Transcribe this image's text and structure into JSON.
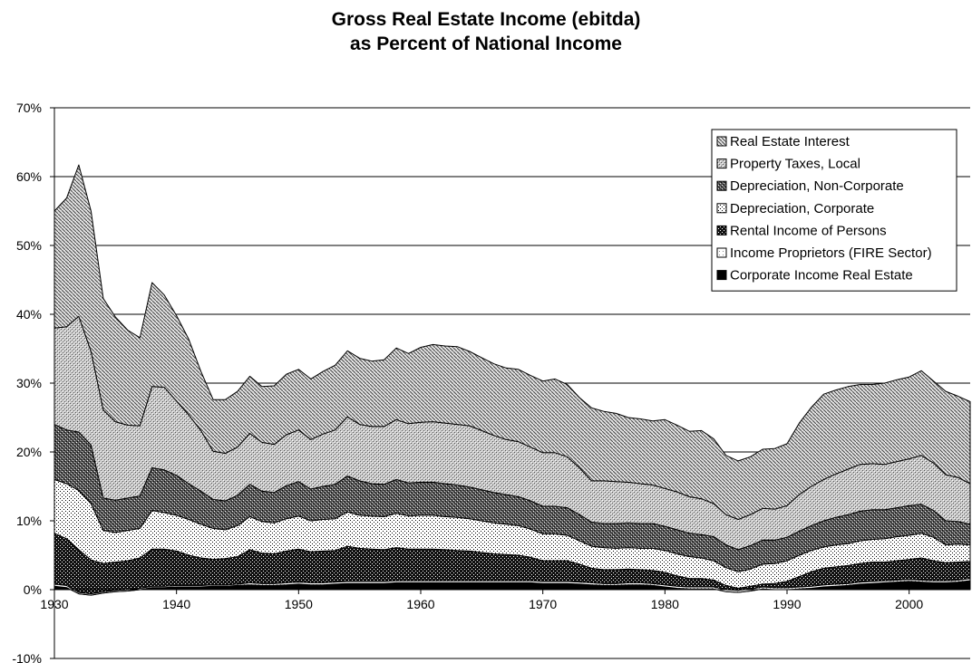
{
  "chart_data": {
    "type": "area",
    "stacked": true,
    "title": [
      "Gross Real Estate Income (ebitda)",
      "as Percent of National Income"
    ],
    "xlabel": "",
    "ylabel": "",
    "xlim": [
      1930,
      2005
    ],
    "ylim": [
      -10,
      70
    ],
    "y_ticks": [
      "-10%",
      "0%",
      "10%",
      "20%",
      "30%",
      "40%",
      "50%",
      "60%",
      "70%"
    ],
    "x_ticks": [
      "1930",
      "1940",
      "1950",
      "1960",
      "1970",
      "1980",
      "1990",
      "2000"
    ],
    "grid": "horizontal",
    "legend_position": "top-right",
    "x": [
      1930,
      1931,
      1932,
      1933,
      1934,
      1935,
      1936,
      1937,
      1938,
      1939,
      1940,
      1941,
      1942,
      1943,
      1944,
      1945,
      1946,
      1947,
      1948,
      1949,
      1950,
      1951,
      1952,
      1953,
      1954,
      1955,
      1956,
      1957,
      1958,
      1959,
      1960,
      1961,
      1962,
      1963,
      1964,
      1965,
      1966,
      1967,
      1968,
      1969,
      1970,
      1971,
      1972,
      1973,
      1974,
      1975,
      1976,
      1977,
      1978,
      1979,
      1980,
      1981,
      1982,
      1983,
      1984,
      1985,
      1986,
      1987,
      1988,
      1989,
      1990,
      1991,
      1992,
      1993,
      1994,
      1995,
      1996,
      1997,
      1998,
      1999,
      2000,
      2001,
      2002,
      2003,
      2004,
      2005
    ],
    "series": [
      {
        "name": "Corporate Income Real Estate",
        "pattern": "black",
        "values": [
          0.5,
          0.3,
          -0.6,
          -0.8,
          -0.5,
          -0.3,
          -0.2,
          0.0,
          0.3,
          0.3,
          0.4,
          0.4,
          0.4,
          0.5,
          0.5,
          0.6,
          0.7,
          0.6,
          0.6,
          0.7,
          0.8,
          0.7,
          0.7,
          0.8,
          0.9,
          0.9,
          0.9,
          0.9,
          1.0,
          1.0,
          1.0,
          1.0,
          1.0,
          1.0,
          1.0,
          1.0,
          1.0,
          1.0,
          1.0,
          1.0,
          0.9,
          0.9,
          0.9,
          0.8,
          0.7,
          0.6,
          0.6,
          0.7,
          0.7,
          0.6,
          0.4,
          0.2,
          0.1,
          0.1,
          0.1,
          -0.3,
          -0.4,
          -0.2,
          0.1,
          0.0,
          0.0,
          0.1,
          0.2,
          0.4,
          0.5,
          0.6,
          0.8,
          0.9,
          1.0,
          1.1,
          1.2,
          1.1,
          1.0,
          1.0,
          1.1,
          1.3
        ]
      },
      {
        "name": "Income Proprietors (FIRE Sector)",
        "pattern": "white",
        "values": [
          0.3,
          0.3,
          0.2,
          0.2,
          0.2,
          0.2,
          0.2,
          0.2,
          0.2,
          0.2,
          0.2,
          0.2,
          0.2,
          0.2,
          0.2,
          0.2,
          0.3,
          0.3,
          0.3,
          0.3,
          0.3,
          0.3,
          0.3,
          0.3,
          0.3,
          0.3,
          0.3,
          0.3,
          0.3,
          0.3,
          0.3,
          0.3,
          0.3,
          0.3,
          0.3,
          0.3,
          0.3,
          0.3,
          0.3,
          0.3,
          0.3,
          0.3,
          0.3,
          0.3,
          0.3,
          0.3,
          0.3,
          0.3,
          0.3,
          0.3,
          0.3,
          0.3,
          0.3,
          0.3,
          0.3,
          0.3,
          0.3,
          0.3,
          0.3,
          0.3,
          0.3,
          0.3,
          0.3,
          0.3,
          0.3,
          0.3,
          0.3,
          0.3,
          0.3,
          0.3,
          0.3,
          0.3,
          0.3,
          0.3,
          0.3,
          0.3
        ]
      },
      {
        "name": "Rental Income of Persons",
        "pattern": "dense-dark",
        "values": [
          7.4,
          6.8,
          6.2,
          4.9,
          4.1,
          4.1,
          4.2,
          4.4,
          5.4,
          5.4,
          5.0,
          4.4,
          4.0,
          3.7,
          3.8,
          4.0,
          4.8,
          4.4,
          4.3,
          4.6,
          4.8,
          4.5,
          4.6,
          4.6,
          5.1,
          4.8,
          4.7,
          4.6,
          4.8,
          4.6,
          4.6,
          4.6,
          4.5,
          4.4,
          4.3,
          4.1,
          3.9,
          3.8,
          3.7,
          3.4,
          3.0,
          3.0,
          3.0,
          2.6,
          2.1,
          2.0,
          2.0,
          2.0,
          1.9,
          1.9,
          1.8,
          1.5,
          1.2,
          1.2,
          1.0,
          0.6,
          0.3,
          0.4,
          0.4,
          0.6,
          0.9,
          1.5,
          2.1,
          2.4,
          2.5,
          2.6,
          2.7,
          2.8,
          2.7,
          2.8,
          2.9,
          3.2,
          2.9,
          2.6,
          2.6,
          2.5
        ]
      },
      {
        "name": "Depreciation, Corporate",
        "pattern": "dots",
        "values": [
          7.8,
          8.0,
          8.6,
          8.2,
          4.8,
          4.3,
          4.4,
          4.3,
          5.6,
          5.3,
          5.2,
          5.2,
          4.9,
          4.5,
          4.2,
          4.5,
          4.8,
          4.6,
          4.5,
          4.7,
          4.8,
          4.5,
          4.6,
          4.6,
          5.0,
          4.8,
          4.8,
          4.8,
          5.0,
          4.8,
          4.9,
          4.9,
          4.8,
          4.8,
          4.7,
          4.6,
          4.5,
          4.4,
          4.3,
          4.1,
          3.9,
          3.9,
          3.7,
          3.4,
          3.2,
          3.2,
          3.1,
          3.1,
          3.1,
          3.2,
          3.2,
          3.2,
          3.2,
          3.0,
          2.8,
          2.6,
          2.4,
          2.5,
          2.9,
          2.9,
          3.0,
          3.1,
          3.1,
          3.1,
          3.2,
          3.2,
          3.3,
          3.3,
          3.4,
          3.5,
          3.5,
          3.6,
          3.4,
          2.6,
          2.6,
          2.4
        ]
      },
      {
        "name": "Depreciation, Non-Corporate",
        "pattern": "crosshatch-dark",
        "values": [
          8.0,
          7.8,
          8.5,
          8.5,
          4.7,
          4.7,
          4.7,
          4.7,
          6.2,
          6.2,
          5.8,
          5.2,
          4.8,
          4.2,
          4.2,
          4.4,
          4.7,
          4.4,
          4.4,
          4.8,
          5.0,
          4.6,
          4.8,
          5.0,
          5.2,
          5.0,
          4.7,
          4.7,
          4.9,
          4.8,
          4.8,
          4.8,
          4.8,
          4.7,
          4.6,
          4.5,
          4.4,
          4.3,
          4.2,
          4.1,
          4.0,
          4.0,
          4.0,
          3.8,
          3.5,
          3.5,
          3.6,
          3.6,
          3.6,
          3.6,
          3.5,
          3.5,
          3.4,
          3.4,
          3.5,
          3.3,
          3.2,
          3.4,
          3.5,
          3.4,
          3.4,
          3.5,
          3.6,
          3.8,
          4.0,
          4.2,
          4.3,
          4.3,
          4.2,
          4.2,
          4.3,
          4.2,
          3.9,
          3.5,
          3.3,
          3.0
        ]
      },
      {
        "name": "Property Taxes, Local",
        "pattern": "crosshatch-light",
        "values": [
          14.0,
          15.0,
          16.8,
          13.6,
          12.8,
          11.4,
          10.6,
          10.2,
          11.8,
          12.0,
          10.8,
          10.0,
          8.8,
          7.0,
          6.9,
          7.0,
          7.4,
          7.1,
          7.0,
          7.4,
          7.5,
          7.2,
          7.6,
          7.9,
          8.6,
          8.2,
          8.3,
          8.4,
          8.7,
          8.6,
          8.7,
          8.8,
          8.8,
          8.8,
          8.9,
          8.6,
          8.3,
          8.0,
          8.0,
          7.8,
          7.8,
          7.8,
          7.4,
          6.8,
          6.0,
          6.2,
          6.1,
          5.9,
          5.8,
          5.6,
          5.5,
          5.5,
          5.3,
          5.2,
          4.8,
          4.4,
          4.4,
          4.5,
          4.6,
          4.5,
          4.6,
          5.3,
          5.7,
          6.0,
          6.3,
          6.6,
          6.8,
          6.7,
          6.6,
          6.7,
          6.8,
          7.1,
          6.9,
          6.7,
          6.4,
          5.9
        ]
      },
      {
        "name": "Real Estate Interest",
        "pattern": "diagonal",
        "values": [
          17.0,
          18.7,
          22.0,
          20.4,
          16.2,
          15.2,
          13.8,
          12.8,
          15.1,
          13.4,
          12.4,
          11.0,
          8.6,
          7.5,
          7.8,
          8.1,
          8.3,
          8.1,
          8.5,
          8.8,
          8.8,
          8.8,
          9.1,
          9.4,
          9.6,
          9.6,
          9.5,
          9.7,
          10.4,
          10.2,
          10.9,
          11.2,
          11.2,
          11.3,
          10.8,
          10.6,
          10.4,
          10.4,
          10.5,
          10.4,
          10.4,
          10.7,
          10.5,
          10.2,
          10.6,
          10.1,
          9.9,
          9.4,
          9.4,
          9.3,
          10.0,
          9.7,
          9.5,
          9.9,
          9.4,
          8.6,
          8.5,
          8.4,
          8.6,
          8.8,
          9.0,
          10.4,
          11.5,
          12.4,
          12.2,
          12.0,
          11.6,
          11.5,
          11.8,
          11.9,
          11.9,
          12.3,
          11.9,
          12.1,
          11.8,
          11.9
        ]
      }
    ]
  }
}
